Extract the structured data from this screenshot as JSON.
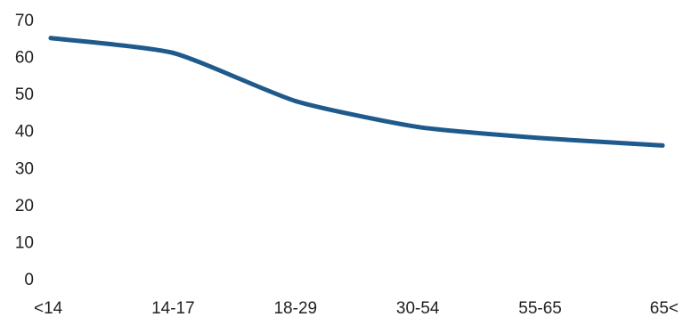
{
  "chart_data": {
    "type": "line",
    "categories": [
      "<14",
      "14-17",
      "18-29",
      "30-54",
      "55-65",
      "65<"
    ],
    "values": [
      65,
      61,
      48,
      41,
      38,
      36
    ],
    "title": "",
    "xlabel": "",
    "ylabel": "",
    "ylim": [
      0,
      70
    ],
    "yticks": [
      0,
      10,
      20,
      30,
      40,
      50,
      60,
      70
    ],
    "grid": false,
    "legend": "none",
    "line_color": "#1f5a8c"
  }
}
